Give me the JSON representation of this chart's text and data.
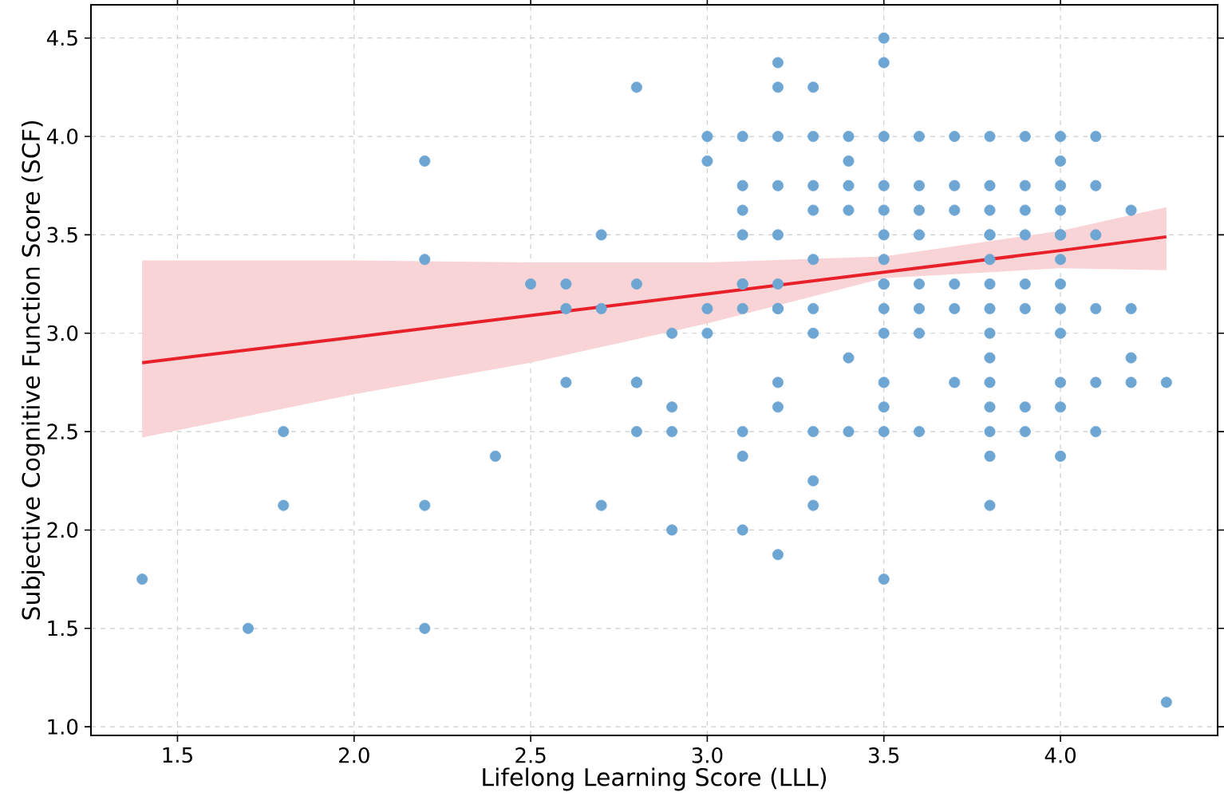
{
  "chart_data": {
    "type": "scatter",
    "xlabel": "Lifelong Learning Score (LLL)",
    "ylabel": "Subjective Cognitive Function Score (SCF)",
    "xlim": [
      1.255,
      4.445
    ],
    "ylim": [
      0.956,
      4.669
    ],
    "xticks": [
      1.5,
      {
        "value": 2.0,
        "label": "2.0"
      },
      2.5,
      {
        "value": 3.0,
        "label": "3.0"
      },
      3.5,
      {
        "value": 4.0,
        "label": "4.0"
      }
    ],
    "yticks": [
      {
        "value": 1.0,
        "label": "1.0"
      },
      1.5,
      {
        "value": 2.0,
        "label": "2.0"
      },
      2.5,
      {
        "value": 3.0,
        "label": "3.0"
      },
      3.5,
      {
        "value": 4.0,
        "label": "4.0"
      },
      4.5
    ],
    "grid": true,
    "series": [
      {
        "color": "#6ea6d3",
        "marker": "circle",
        "x": [
          1.4,
          1.7,
          1.8,
          1.8,
          2.2,
          2.2,
          2.2,
          2.2,
          2.4,
          2.5,
          2.6,
          2.6,
          2.6,
          2.7,
          2.7,
          2.7,
          2.8,
          2.8,
          2.8,
          2.8,
          2.8,
          2.9,
          2.9,
          2.9,
          2.9,
          3.0,
          3.0,
          3.0,
          3.0,
          3.1,
          3.1,
          3.1,
          3.1,
          3.1,
          3.1,
          3.1,
          3.1,
          3.1,
          3.1,
          3.2,
          3.2,
          3.2,
          3.2,
          3.2,
          3.2,
          3.2,
          3.2,
          3.2,
          3.2,
          3.2,
          3.3,
          3.3,
          3.3,
          3.3,
          3.3,
          3.3,
          3.3,
          3.3,
          3.3,
          3.3,
          3.4,
          3.4,
          3.4,
          3.4,
          3.4,
          3.4,
          3.5,
          3.5,
          3.5,
          3.5,
          3.5,
          3.5,
          3.5,
          3.5,
          3.5,
          3.5,
          3.5,
          3.5,
          3.5,
          3.5,
          3.5,
          3.6,
          3.6,
          3.6,
          3.6,
          3.6,
          3.6,
          3.6,
          3.6,
          3.7,
          3.7,
          3.7,
          3.7,
          3.7,
          3.7,
          3.8,
          3.8,
          3.8,
          3.8,
          3.8,
          3.8,
          3.8,
          3.8,
          3.8,
          3.8,
          3.8,
          3.8,
          3.8,
          3.8,
          3.8,
          3.9,
          3.9,
          3.9,
          3.9,
          3.9,
          3.9,
          3.9,
          3.9,
          4.0,
          4.0,
          4.0,
          4.0,
          4.0,
          4.0,
          4.0,
          4.0,
          4.0,
          4.0,
          4.0,
          4.0,
          4.0,
          4.1,
          4.1,
          4.1,
          4.1,
          4.1,
          4.1,
          4.2,
          4.2,
          4.2,
          4.2,
          4.3,
          4.3
        ],
        "values": [
          1.75,
          1.5,
          2.5,
          2.125,
          3.875,
          3.375,
          2.125,
          1.5,
          2.375,
          3.25,
          3.25,
          3.125,
          2.75,
          3.5,
          3.125,
          2.125,
          4.25,
          3.25,
          2.75,
          2.5,
          2.75,
          3.0,
          2.625,
          2.5,
          2.0,
          4.0,
          3.875,
          3.125,
          3.0,
          4.0,
          3.75,
          3.625,
          3.5,
          3.25,
          3.125,
          2.5,
          2.375,
          2.0,
          3.25,
          4.375,
          4.25,
          4.0,
          3.75,
          3.5,
          3.25,
          3.125,
          2.75,
          2.625,
          1.875,
          3.125,
          4.25,
          4.0,
          3.75,
          3.625,
          3.375,
          3.125,
          2.5,
          2.25,
          2.125,
          3.0,
          4.0,
          3.875,
          3.75,
          3.625,
          2.875,
          2.5,
          4.5,
          4.375,
          4.0,
          3.75,
          3.625,
          3.5,
          3.375,
          3.25,
          3.125,
          3.0,
          2.75,
          2.625,
          2.5,
          1.75,
          3.25,
          4.0,
          3.75,
          3.625,
          3.5,
          3.25,
          3.125,
          3.0,
          2.5,
          4.0,
          3.75,
          3.625,
          3.25,
          3.125,
          2.75,
          4.0,
          3.75,
          3.625,
          3.5,
          3.375,
          3.25,
          3.125,
          3.0,
          2.875,
          2.75,
          2.625,
          2.5,
          2.375,
          2.125,
          3.5,
          4.0,
          3.75,
          3.625,
          3.5,
          3.25,
          3.125,
          2.625,
          2.5,
          4.0,
          3.875,
          3.75,
          3.625,
          3.5,
          3.375,
          3.25,
          3.125,
          3.0,
          2.75,
          2.625,
          2.375,
          3.5,
          4.0,
          3.75,
          3.5,
          3.125,
          2.75,
          2.5,
          3.625,
          3.125,
          2.875,
          2.75,
          2.75,
          1.125
        ]
      },
      {
        "type": "line",
        "color": "#e8202a",
        "marker": "none",
        "line_style": "solid",
        "x": [
          1.4,
          2.0,
          2.5,
          3.0,
          3.5,
          4.0,
          4.3
        ],
        "values": [
          2.85,
          2.98,
          3.09,
          3.2,
          3.31,
          3.42,
          3.49
        ],
        "lower": [
          2.47,
          2.69,
          2.85,
          3.05,
          3.28,
          3.33,
          3.32
        ],
        "upper": [
          3.37,
          3.37,
          3.36,
          3.36,
          3.39,
          3.52,
          3.64
        ]
      }
    ]
  }
}
